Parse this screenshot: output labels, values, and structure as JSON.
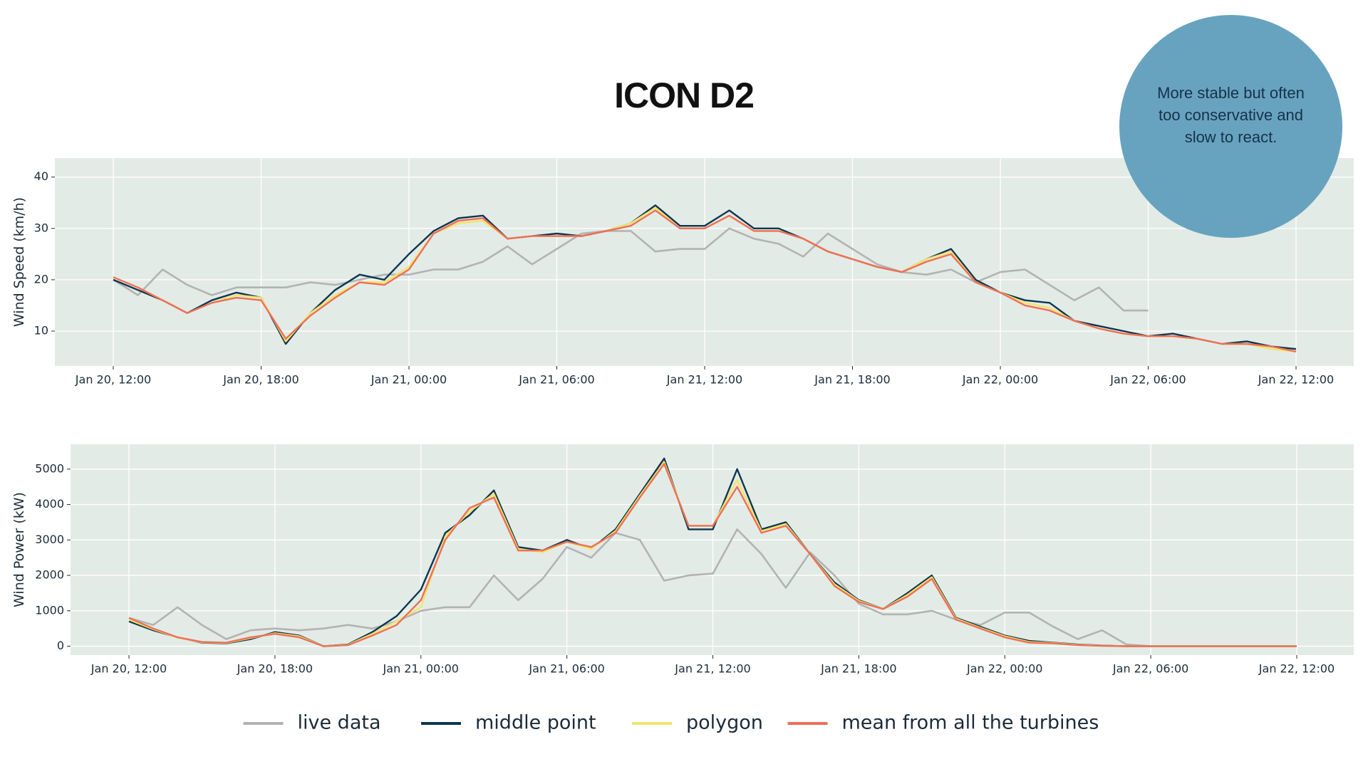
{
  "title": "ICON D2",
  "annotation": "More stable but often too conservative and slow to react.",
  "chart_data": [
    {
      "type": "line",
      "ylabel": "Wind Speed (km/h)",
      "x": [
        "Jan 20, 12:00",
        null,
        null,
        null,
        null,
        null,
        "Jan 20, 18:00",
        null,
        null,
        null,
        null,
        null,
        "Jan 21, 00:00",
        null,
        null,
        null,
        null,
        null,
        "Jan 21, 06:00",
        null,
        null,
        null,
        null,
        null,
        "Jan 21, 12:00",
        null,
        null,
        null,
        null,
        null,
        "Jan 21, 18:00",
        null,
        null,
        null,
        null,
        null,
        "Jan 22, 00:00",
        null,
        null,
        null,
        null,
        null,
        "Jan 22, 06:00",
        null,
        null,
        null,
        null,
        null,
        "Jan 22, 12:00"
      ],
      "ylim": [
        3.2,
        43.7
      ],
      "yticks": [
        10,
        20,
        30,
        40
      ],
      "grid": true,
      "series": [
        {
          "name": "live data",
          "color": "#b3b3b3",
          "values": [
            20,
            17,
            22,
            19,
            17,
            18.5,
            18.5,
            18.5,
            19.5,
            19,
            20,
            21,
            21,
            22,
            22,
            23.5,
            26.5,
            23,
            26,
            29,
            29.5,
            29.5,
            25.5,
            26,
            26,
            30,
            28,
            27,
            24.5,
            29,
            26,
            23,
            21.5,
            21,
            22,
            19.5,
            21.5,
            22,
            19,
            16,
            18.5,
            14,
            14,
            null,
            null,
            null,
            null,
            null,
            null
          ]
        },
        {
          "name": "middle point",
          "color": "#0d3650",
          "values": [
            20,
            18,
            16,
            13.5,
            16,
            17.5,
            16.5,
            7.5,
            13.5,
            18,
            21,
            20,
            25,
            29.5,
            32,
            32.5,
            28,
            28.5,
            29,
            28.5,
            29.5,
            31,
            34.5,
            30.5,
            30.5,
            33.5,
            30,
            30,
            28,
            25.5,
            24,
            22.5,
            21.5,
            24,
            26,
            20,
            17.5,
            16,
            15.5,
            12,
            11,
            10,
            9,
            9.5,
            8.5,
            7.5,
            8,
            7,
            6.5
          ]
        },
        {
          "name": "polygon",
          "color": "#f3e46a",
          "values": [
            20.5,
            18.5,
            16,
            13.5,
            15.5,
            17,
            16.5,
            8,
            13.5,
            17,
            19.5,
            19.5,
            22.5,
            29,
            31,
            31.5,
            28,
            28.5,
            28.5,
            28.5,
            29.5,
            31,
            34,
            30,
            30,
            32.5,
            29.5,
            29.5,
            28,
            25.5,
            24,
            22.5,
            21.5,
            24,
            25.5,
            19.5,
            17.5,
            15.5,
            14.5,
            12,
            10.5,
            9.5,
            9,
            9,
            8.5,
            7.5,
            7.5,
            6.5,
            6
          ]
        },
        {
          "name": "mean from all the turbines",
          "color": "#ef6f55",
          "values": [
            20.5,
            18.5,
            16,
            13.5,
            15.5,
            16.5,
            16,
            8.5,
            13,
            16.5,
            19.5,
            19,
            22,
            29,
            31.5,
            32,
            28,
            28.5,
            28.5,
            28.5,
            29.5,
            30.5,
            33.5,
            30,
            30,
            32.5,
            29.5,
            29.5,
            28,
            25.5,
            24,
            22.5,
            21.5,
            23.5,
            25,
            19.5,
            17.5,
            15,
            14,
            12,
            10.5,
            9.5,
            9,
            9,
            8.5,
            7.5,
            7.5,
            7,
            6
          ]
        }
      ]
    },
    {
      "type": "line",
      "ylabel": "Wind Power (kW)",
      "x": [
        "Jan 20, 12:00",
        null,
        null,
        null,
        null,
        null,
        "Jan 20, 18:00",
        null,
        null,
        null,
        null,
        null,
        "Jan 21, 00:00",
        null,
        null,
        null,
        null,
        null,
        "Jan 21, 06:00",
        null,
        null,
        null,
        null,
        null,
        "Jan 21, 12:00",
        null,
        null,
        null,
        null,
        null,
        "Jan 21, 18:00",
        null,
        null,
        null,
        null,
        null,
        "Jan 22, 00:00",
        null,
        null,
        null,
        null,
        null,
        "Jan 22, 06:00",
        null,
        null,
        null,
        null,
        null,
        "Jan 22, 12:00"
      ],
      "ylim": [
        -250,
        5700
      ],
      "yticks": [
        0,
        1000,
        2000,
        3000,
        4000,
        5000
      ],
      "grid": true,
      "series": [
        {
          "name": "live data",
          "color": "#b3b3b3",
          "values": [
            800,
            600,
            1100,
            600,
            200,
            450,
            500,
            450,
            500,
            600,
            500,
            700,
            1000,
            1100,
            1100,
            2000,
            1300,
            1900,
            2800,
            2500,
            3200,
            3000,
            1850,
            2000,
            2050,
            3300,
            2600,
            1650,
            2650,
            2000,
            1200,
            900,
            900,
            1000,
            750,
            600,
            950,
            950,
            550,
            200,
            450,
            50,
            0,
            null,
            null,
            null,
            null,
            null,
            null
          ]
        },
        {
          "name": "middle point",
          "color": "#0d3650",
          "values": [
            700,
            450,
            250,
            100,
            80,
            200,
            400,
            300,
            0,
            50,
            400,
            850,
            1600,
            3200,
            3700,
            4400,
            2800,
            2700,
            3000,
            2750,
            3300,
            4300,
            5300,
            3300,
            3300,
            5000,
            3300,
            3500,
            2600,
            1800,
            1300,
            1050,
            1500,
            2000,
            800,
            550,
            300,
            150,
            100,
            50,
            20,
            0,
            0,
            0,
            0,
            0,
            0,
            0,
            0
          ]
        },
        {
          "name": "polygon",
          "color": "#f3e46a",
          "values": [
            750,
            480,
            240,
            110,
            90,
            230,
            370,
            280,
            0,
            40,
            350,
            700,
            1100,
            3100,
            3800,
            4300,
            2750,
            2650,
            2950,
            2750,
            3250,
            4250,
            5200,
            3400,
            3400,
            4700,
            3250,
            3450,
            2600,
            1750,
            1280,
            1050,
            1450,
            1950,
            780,
            520,
            280,
            120,
            90,
            40,
            15,
            0,
            0,
            0,
            0,
            0,
            0,
            0,
            0
          ]
        },
        {
          "name": "mean from all the turbines",
          "color": "#ef6f55",
          "values": [
            800,
            500,
            250,
            120,
            100,
            250,
            350,
            250,
            0,
            30,
            300,
            600,
            1300,
            3000,
            3900,
            4200,
            2700,
            2700,
            2950,
            2800,
            3200,
            4200,
            5150,
            3400,
            3400,
            4500,
            3200,
            3400,
            2600,
            1700,
            1250,
            1050,
            1400,
            1900,
            750,
            500,
            250,
            100,
            80,
            30,
            10,
            0,
            0,
            0,
            0,
            0,
            0,
            0,
            0
          ]
        }
      ]
    }
  ]
}
